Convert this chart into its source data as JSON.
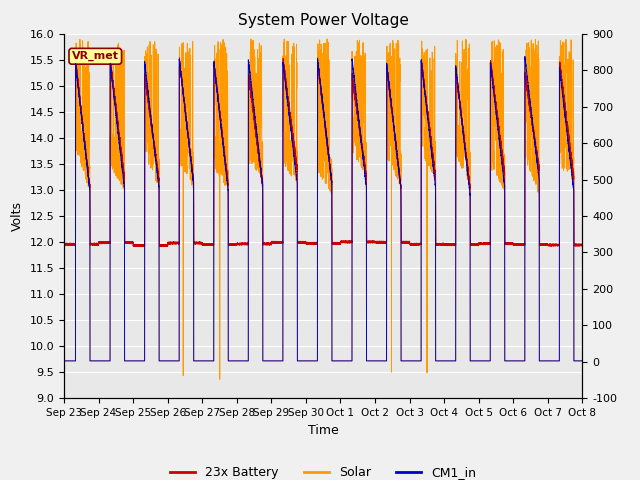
{
  "title": "System Power Voltage",
  "xlabel": "Time",
  "ylabel_left": "Volts",
  "ylim_left": [
    9.0,
    16.0
  ],
  "ylim_right": [
    -100,
    900
  ],
  "yticks_left": [
    9.0,
    9.5,
    10.0,
    10.5,
    11.0,
    11.5,
    12.0,
    12.5,
    13.0,
    13.5,
    14.0,
    14.5,
    15.0,
    15.5,
    16.0
  ],
  "yticks_right": [
    -100,
    0,
    100,
    200,
    300,
    400,
    500,
    600,
    700,
    800,
    900
  ],
  "x_tick_labels": [
    "Sep 23",
    "Sep 24",
    "Sep 25",
    "Sep 26",
    "Sep 27",
    "Sep 28",
    "Sep 29",
    "Sep 30",
    "Oct 1",
    "Oct 2",
    "Oct 3",
    "Oct 4",
    "Oct 5",
    "Oct 6",
    "Oct 7",
    "Oct 8"
  ],
  "n_days": 15,
  "plot_bg_color": "#e8e8e8",
  "fig_bg_color": "#f0f0f0",
  "grid_color": "#ffffff",
  "battery_color": "#cc0000",
  "solar_color": "#ff9900",
  "cm1_color": "#0000cc",
  "vr_met_label": "VR_met",
  "legend_labels": [
    "23x Battery",
    "Solar",
    "CM1_in"
  ]
}
